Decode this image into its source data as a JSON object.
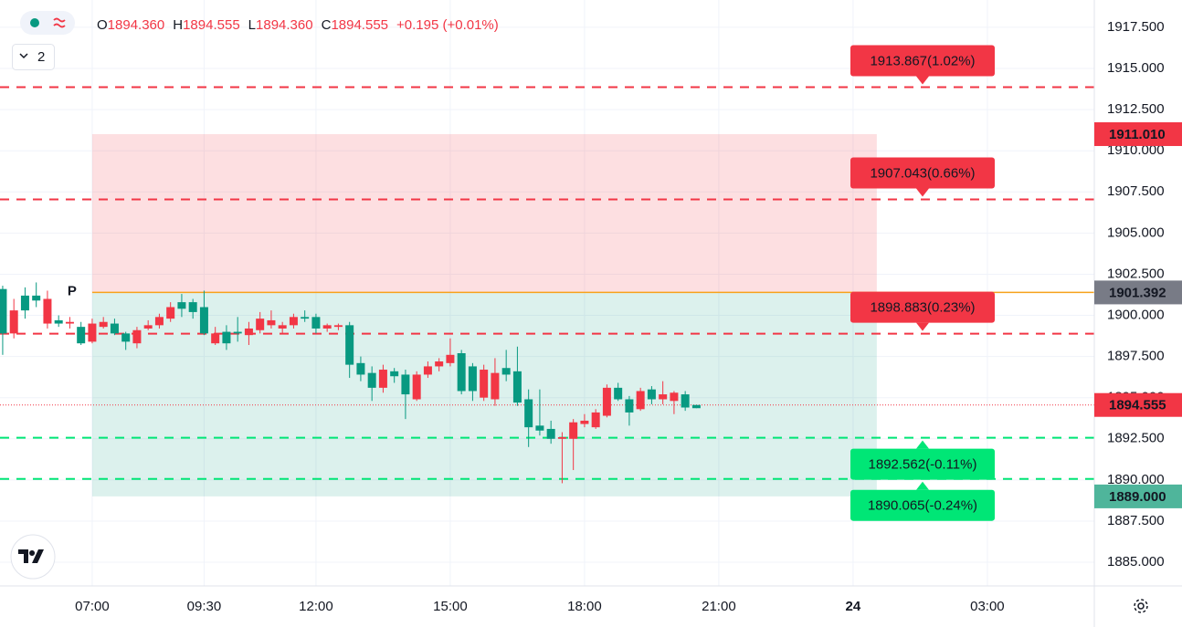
{
  "header": {
    "open_label": "O",
    "open": "1894.360",
    "high_label": "H",
    "high": "1894.555",
    "low_label": "L",
    "low": "1894.360",
    "close_label": "C",
    "close": "1894.555",
    "change": "+0.195 (+0.01%)",
    "collapse_count": "2"
  },
  "chart_data": {
    "type": "candlestick",
    "x": [
      5,
      5.25,
      5.5,
      5.75,
      6,
      6.25,
      6.5,
      6.75,
      7,
      7.25,
      7.5,
      7.75,
      8,
      8.25,
      8.5,
      8.75,
      9,
      9.25,
      9.5,
      9.75,
      10,
      10.25,
      10.5,
      10.75,
      11,
      11.25,
      11.5,
      11.75,
      12,
      12.25,
      12.5,
      12.75,
      13,
      13.25,
      13.5,
      13.75,
      14,
      14.25,
      14.5,
      14.75,
      15,
      15.25,
      15.5,
      15.75,
      16,
      16.25,
      16.5,
      16.75,
      17,
      17.25,
      17.5,
      17.75,
      18,
      18.25,
      18.5,
      18.75,
      19,
      19.25,
      19.5,
      19.75,
      20,
      20.25,
      20.5
    ],
    "open": [
      1898.9,
      1900.3,
      1900.3,
      1900.9,
      1901.0,
      1899.5,
      1899.6,
      1898.3,
      1899.5,
      1899.6,
      1898.9,
      1898.4,
      1899.1,
      1899.4,
      1899.9,
      1900.5,
      1900.4,
      1900.2,
      1898.9,
      1898.9,
      1898.3,
      1898.9,
      1899.2,
      1899.8,
      1899.7,
      1899.4,
      1899.9,
      1899.8,
      1899.2,
      1899.4,
      1899.4,
      1897.0,
      1896.4,
      1895.6,
      1896.7,
      1896.3,
      1895.2,
      1896.4,
      1896.9,
      1897.2,
      1897.6,
      1895.4,
      1895.4,
      1896.7,
      1896.5,
      1896.4,
      1894.7,
      1893.2,
      1893.0,
      1892.5,
      1892.6,
      1893.5,
      1893.6,
      1894.1,
      1895.6,
      1894.9,
      1894.1,
      1895.4,
      1894.9,
      1895.2,
      1895.3,
      1894.4,
      1894.36
    ],
    "high": [
      1901.8,
      1901.0,
      1901.7,
      1902.0,
      1901.5,
      1900.0,
      1899.9,
      1899.6,
      1899.8,
      1899.9,
      1899.8,
      1899.0,
      1899.3,
      1899.7,
      1900.1,
      1900.8,
      1901.3,
      1901.0,
      1901.5,
      1899.3,
      1899.4,
      1899.9,
      1899.6,
      1900.2,
      1900.3,
      1899.6,
      1900.1,
      1900.3,
      1900.1,
      1899.5,
      1899.5,
      1899.6,
      1897.5,
      1896.9,
      1897.0,
      1896.8,
      1896.7,
      1896.6,
      1897.2,
      1897.4,
      1898.6,
      1897.9,
      1897.1,
      1897.0,
      1897.4,
      1897.9,
      1898.1,
      1895.5,
      1895.5,
      1893.6,
      1892.9,
      1893.7,
      1894.0,
      1894.3,
      1895.8,
      1895.9,
      1895.1,
      1895.6,
      1895.7,
      1896.0,
      1895.4,
      1895.4,
      1894.555
    ],
    "low": [
      1897.6,
      1898.6,
      1899.8,
      1900.5,
      1899.2,
      1899.3,
      1899.2,
      1898.2,
      1898.3,
      1899.2,
      1898.8,
      1897.9,
      1898.0,
      1899.1,
      1899.2,
      1899.6,
      1899.9,
      1899.8,
      1898.8,
      1898.2,
      1897.9,
      1898.4,
      1898.2,
      1898.9,
      1899.2,
      1898.9,
      1899.2,
      1899.6,
      1898.9,
      1899.0,
      1899.1,
      1896.2,
      1896.0,
      1894.8,
      1895.3,
      1895.9,
      1893.7,
      1894.8,
      1896.2,
      1896.6,
      1896.9,
      1895.2,
      1894.8,
      1894.8,
      1894.5,
      1896.0,
      1894.5,
      1892.0,
      1892.7,
      1892.2,
      1889.8,
      1890.6,
      1893.2,
      1893.1,
      1893.8,
      1894.8,
      1893.3,
      1894.2,
      1894.6,
      1894.6,
      1894.0,
      1894.2,
      1894.36
    ],
    "close": [
      1901.6,
      1898.9,
      1901.2,
      1901.2,
      1899.5,
      1899.7,
      1899.5,
      1899.3,
      1898.4,
      1899.3,
      1899.5,
      1898.9,
      1898.3,
      1899.2,
      1899.4,
      1899.8,
      1900.8,
      1900.8,
      1900.5,
      1898.3,
      1899.0,
      1899.0,
      1898.8,
      1899.1,
      1899.4,
      1899.2,
      1899.4,
      1899.9,
      1899.9,
      1899.2,
      1899.3,
      1899.4,
      1897.1,
      1896.5,
      1895.6,
      1896.6,
      1896.4,
      1894.9,
      1896.4,
      1896.9,
      1897.1,
      1897.7,
      1896.9,
      1895.0,
      1894.9,
      1896.8,
      1896.6,
      1894.9,
      1893.3,
      1893.1,
      1892.5,
      1892.5,
      1893.4,
      1893.2,
      1893.9,
      1895.6,
      1894.9,
      1894.3,
      1895.5,
      1894.9,
      1894.8,
      1895.2,
      1894.555
    ],
    "up_color": "#089981",
    "down_color": "#f23645",
    "xlim": [
      4.94,
      29.39
    ],
    "xticks": [
      {
        "value": 7,
        "label": "07:00"
      },
      {
        "value": 9.5,
        "label": "09:30"
      },
      {
        "value": 12,
        "label": "12:00"
      },
      {
        "value": 15,
        "label": "15:00"
      },
      {
        "value": 18,
        "label": "18:00"
      },
      {
        "value": 21,
        "label": "21:00"
      },
      24,
      {
        "value": 27,
        "label": "03:00"
      }
    ],
    "ylim": [
      1883.56,
      1919.16
    ],
    "yticks": [
      {
        "value": 1885,
        "label": "1885.000"
      },
      {
        "value": 1887.5,
        "label": "1887.500"
      },
      {
        "value": 1890,
        "label": "1890.000"
      },
      {
        "value": 1892.5,
        "label": "1892.500"
      },
      {
        "value": 1895,
        "label": "1895.000"
      },
      {
        "value": 1897.5,
        "label": "1897.500"
      },
      {
        "value": 1900,
        "label": "1900.000"
      },
      {
        "value": 1902.5,
        "label": "1902.500"
      },
      {
        "value": 1905,
        "label": "1905.000"
      },
      {
        "value": 1907.5,
        "label": "1907.500"
      },
      {
        "value": 1910,
        "label": "1910.000"
      },
      {
        "value": 1912.5,
        "label": "1912.500"
      },
      {
        "value": 1915,
        "label": "1915.000"
      },
      {
        "value": 1917.5,
        "label": "1917.500"
      }
    ],
    "grid": true,
    "zones": [
      {
        "low": 1901.392,
        "high": 1911.01,
        "start": 7,
        "end": 24.53,
        "color": "rgba(242,54,69,0.16)"
      },
      {
        "low": 1889.0,
        "high": 1901.392,
        "start": 7,
        "end": 24.53,
        "color": "rgba(8,153,129,0.14)"
      }
    ],
    "pivot": {
      "value": 1901.392,
      "label": "P",
      "start": 7,
      "color": "#f7a21b"
    },
    "levels": [
      {
        "value": 1913.867,
        "label": "1913.867(1.02%)",
        "color": "#f23645",
        "text_color": "#ffffff"
      },
      {
        "value": 1907.043,
        "label": "1907.043(0.66%)",
        "color": "#f23645",
        "text_color": "#ffffff"
      },
      {
        "value": 1898.883,
        "label": "1898.883(0.23%)",
        "color": "#f23645",
        "text_color": "#ffffff"
      },
      {
        "value": 1892.562,
        "label": "1892.562(-0.11%)",
        "color": "#00e676",
        "text_color": "#131722"
      },
      {
        "value": 1890.065,
        "label": "1890.065(-0.24%)",
        "color": "#00e676",
        "text_color": "#131722"
      }
    ],
    "price_badges": [
      {
        "value": 1911.01,
        "label": "1911.010",
        "color": "#f23645"
      },
      {
        "value": 1901.392,
        "label": "1901.392",
        "color": "#787b86"
      },
      {
        "value": 1894.555,
        "label": "1894.555",
        "color": "#f23645",
        "line": "dotted"
      },
      {
        "value": 1889.0,
        "label": "1889.000",
        "color": "#4fb59b"
      }
    ]
  }
}
